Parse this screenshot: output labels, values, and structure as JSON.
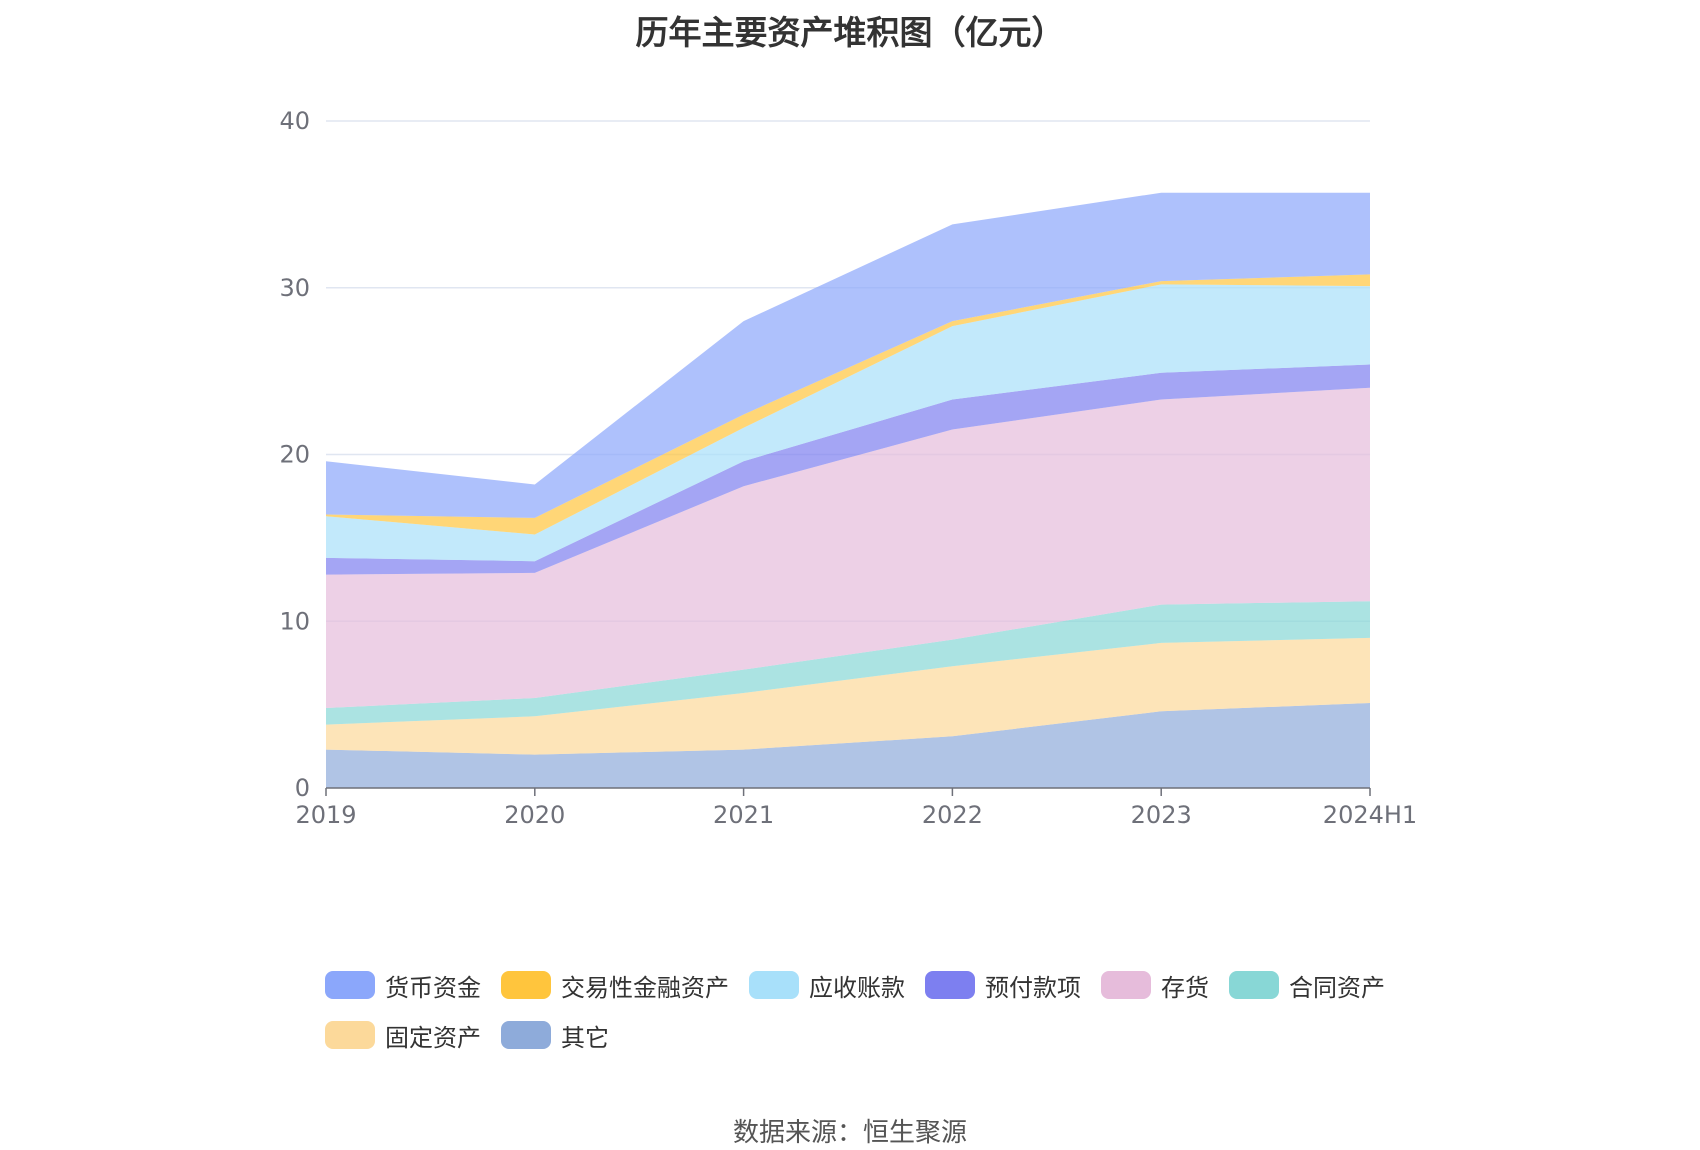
{
  "chart_data": {
    "type": "area",
    "title": "历年主要资产堆积图（亿元）",
    "stacked": true,
    "categories": [
      "2019",
      "2020",
      "2021",
      "2022",
      "2023",
      "2024H1"
    ],
    "ylim": [
      0,
      40
    ],
    "yticks": [
      0,
      10,
      20,
      30,
      40
    ],
    "grid": true,
    "legend_position": "bottom",
    "series": [
      {
        "name": "其它",
        "color": "#8EABDA",
        "values": [
          2.3,
          2.0,
          2.3,
          3.1,
          4.6,
          5.1
        ]
      },
      {
        "name": "固定资产",
        "color": "#FCD99A",
        "values": [
          1.5,
          2.3,
          3.4,
          4.2,
          4.1,
          3.9
        ]
      },
      {
        "name": "合同资产",
        "color": "#88D7D6",
        "values": [
          1.0,
          1.1,
          1.4,
          1.6,
          2.3,
          2.2
        ]
      },
      {
        "name": "存货",
        "color": "#E6BCDB",
        "values": [
          8.0,
          7.5,
          11.0,
          12.6,
          12.3,
          12.8
        ]
      },
      {
        "name": "预付款项",
        "color": "#7D7FF0",
        "values": [
          1.0,
          0.7,
          1.5,
          1.8,
          1.6,
          1.4
        ]
      },
      {
        "name": "应收账款",
        "color": "#A8E0FA",
        "values": [
          2.5,
          1.6,
          2.0,
          4.4,
          5.3,
          4.7
        ]
      },
      {
        "name": "交易性金融资产",
        "color": "#FFC53D",
        "values": [
          0.1,
          1.0,
          0.8,
          0.3,
          0.2,
          0.7
        ]
      },
      {
        "name": "货币资金",
        "color": "#8BA7FB",
        "values": [
          3.2,
          2.0,
          5.6,
          5.8,
          5.3,
          4.9
        ]
      }
    ]
  },
  "legend_order": [
    "货币资金",
    "交易性金融资产",
    "应收账款",
    "预付款项",
    "存货",
    "合同资产",
    "固定资产",
    "其它"
  ],
  "source": "数据来源：恒生聚源"
}
